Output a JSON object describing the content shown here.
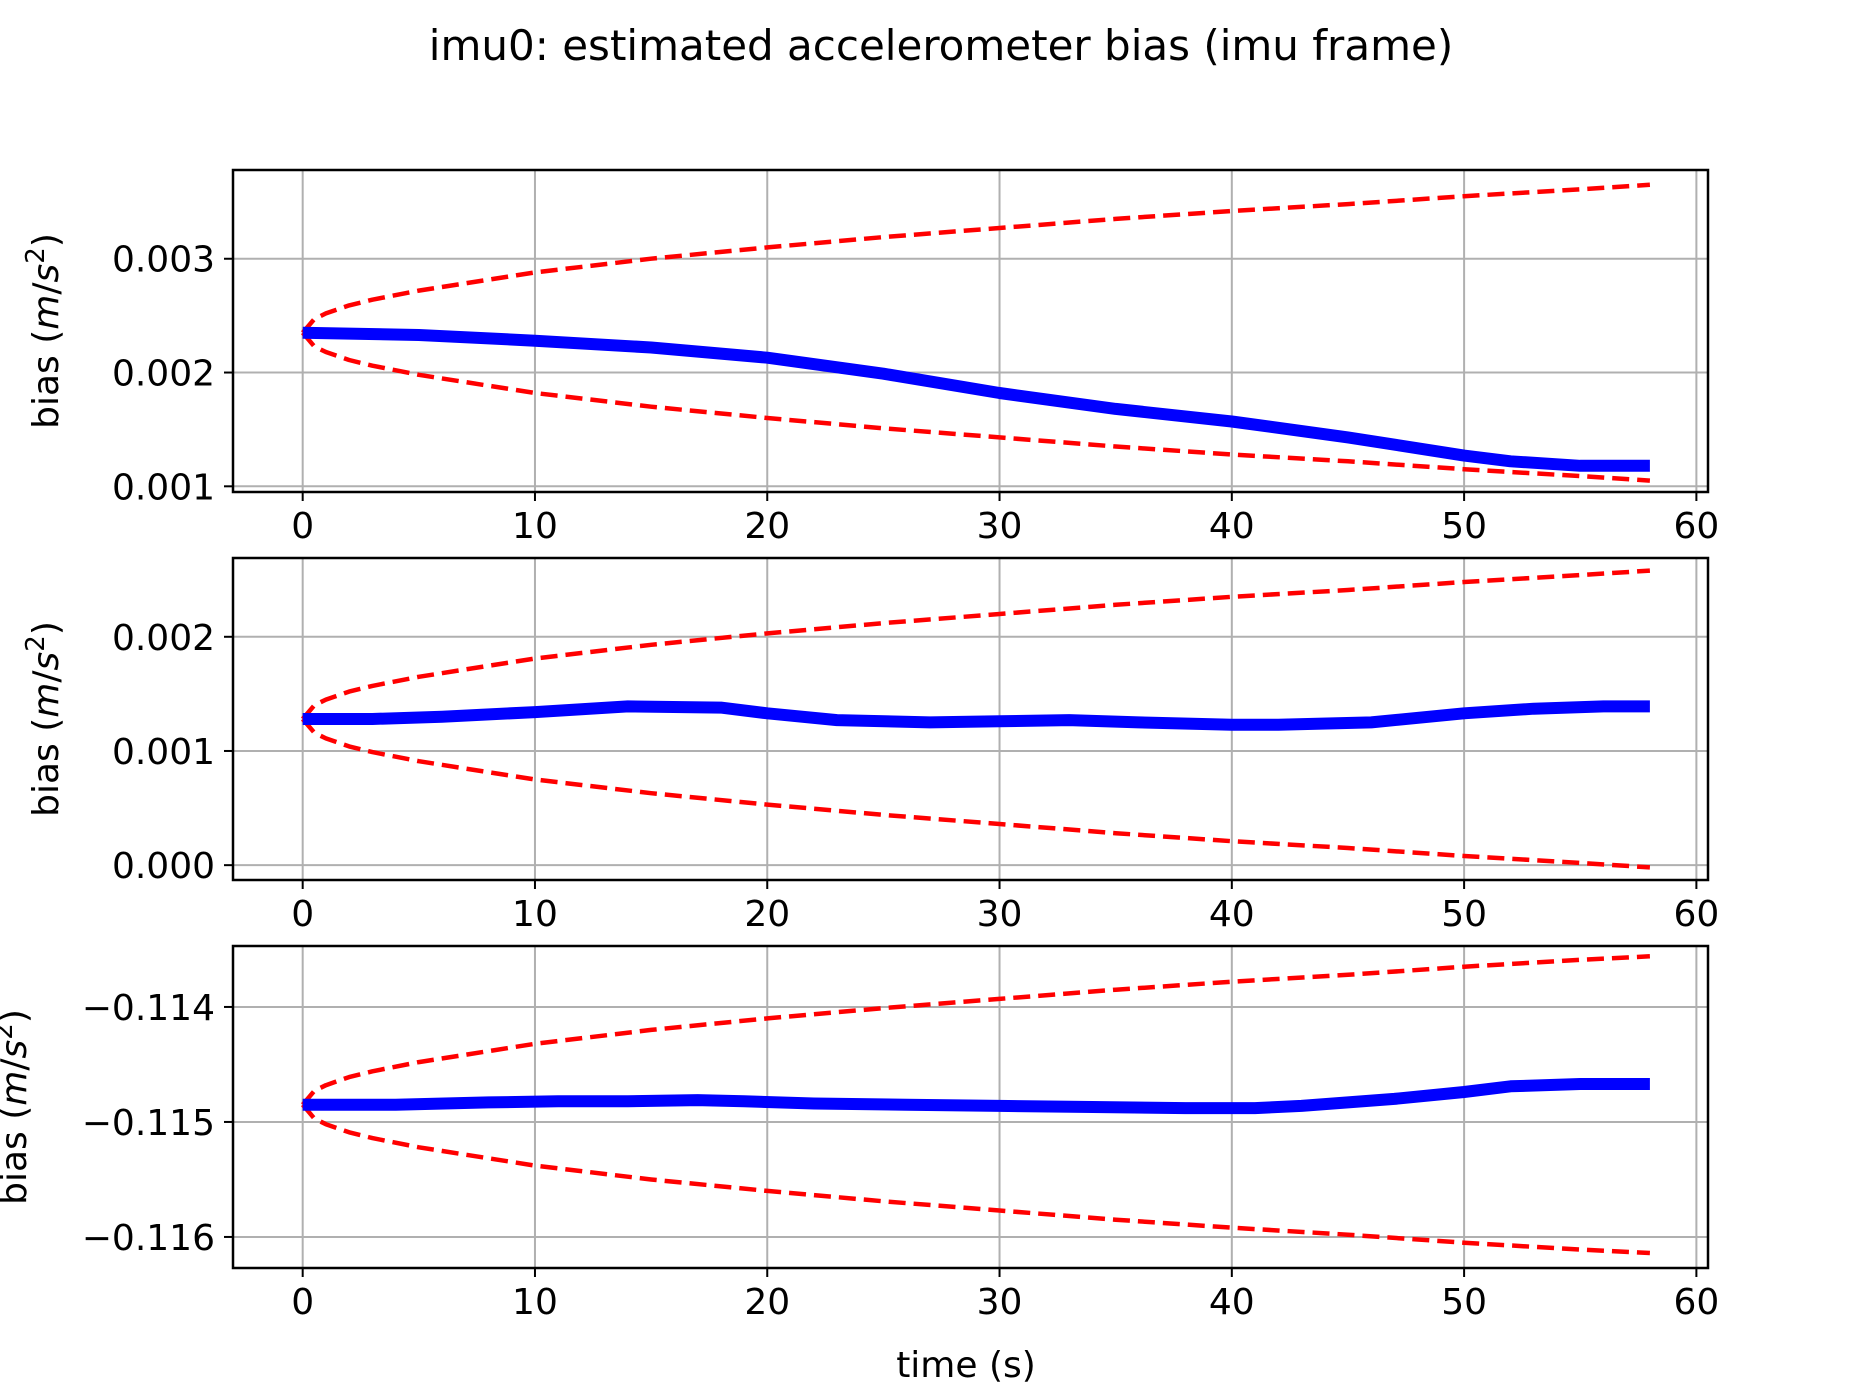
{
  "chart_data": [
    {
      "type": "line",
      "title": "imu0: estimated accelerometer bias (imu frame)",
      "xlabel": "",
      "ylabel": "bias (m/s²)",
      "ylabel_parts": {
        "pre": "bias (",
        "var_m": "m",
        "slash": "/",
        "var_s": "s",
        "sup": "2",
        "post": ")"
      },
      "xlim": [
        -3,
        60.5
      ],
      "ylim": [
        0.00095,
        0.00378
      ],
      "xticks": [
        0,
        10,
        20,
        30,
        40,
        50,
        60
      ],
      "xtick_labels": [
        "0",
        "10",
        "20",
        "30",
        "40",
        "50",
        "60"
      ],
      "yticks": [
        0.001,
        0.002,
        0.003
      ],
      "ytick_labels": [
        "0.001",
        "0.002",
        "0.003"
      ],
      "grid": true,
      "series": [
        {
          "role": "estimate",
          "color": "#0000ff",
          "style": "solid",
          "x": [
            0,
            5,
            10,
            15,
            20,
            25,
            30,
            35,
            40,
            45,
            50,
            52,
            55,
            58
          ],
          "y": [
            0.00235,
            0.00233,
            0.00228,
            0.00222,
            0.00213,
            0.00199,
            0.00182,
            0.00168,
            0.00157,
            0.00143,
            0.00127,
            0.00122,
            0.00118,
            0.00118
          ]
        },
        {
          "role": "upper bound",
          "color": "#ff0000",
          "style": "dashed",
          "x": [
            0,
            0.5,
            1,
            2,
            3,
            5,
            10,
            15,
            20,
            25,
            30,
            35,
            40,
            45,
            50,
            55,
            58
          ],
          "y": [
            0.00235,
            0.00247,
            0.00252,
            0.00259,
            0.00264,
            0.00272,
            0.00288,
            0.003,
            0.0031,
            0.00319,
            0.00327,
            0.00335,
            0.00342,
            0.00348,
            0.00355,
            0.00361,
            0.00365
          ]
        },
        {
          "role": "lower bound",
          "color": "#ff0000",
          "style": "dashed",
          "x": [
            0,
            0.5,
            1,
            2,
            3,
            5,
            10,
            15,
            20,
            25,
            30,
            35,
            40,
            45,
            50,
            55,
            58
          ],
          "y": [
            0.00235,
            0.00223,
            0.00218,
            0.00211,
            0.00206,
            0.00198,
            0.00182,
            0.0017,
            0.0016,
            0.00151,
            0.00143,
            0.00135,
            0.00128,
            0.00122,
            0.00115,
            0.00109,
            0.00105
          ]
        }
      ]
    },
    {
      "type": "line",
      "xlabel": "",
      "ylabel": "bias (m/s²)",
      "ylabel_parts": {
        "pre": "bias (",
        "var_m": "m",
        "slash": "/",
        "var_s": "s",
        "sup": "2",
        "post": ")"
      },
      "xlim": [
        -3,
        60.5
      ],
      "ylim": [
        -0.00013,
        0.00269
      ],
      "xticks": [
        0,
        10,
        20,
        30,
        40,
        50,
        60
      ],
      "xtick_labels": [
        "0",
        "10",
        "20",
        "30",
        "40",
        "50",
        "60"
      ],
      "yticks": [
        0.0,
        0.001,
        0.002
      ],
      "ytick_labels": [
        "0.000",
        "0.001",
        "0.002"
      ],
      "grid": true,
      "series": [
        {
          "role": "estimate",
          "color": "#0000ff",
          "style": "solid",
          "x": [
            0,
            3,
            6,
            10,
            14,
            18,
            20,
            23,
            27,
            30,
            33,
            36,
            40,
            42,
            46,
            50,
            53,
            56,
            58
          ],
          "y": [
            0.00128,
            0.00128,
            0.0013,
            0.00134,
            0.00139,
            0.00138,
            0.00133,
            0.00127,
            0.00125,
            0.00126,
            0.00127,
            0.00125,
            0.00123,
            0.00123,
            0.00125,
            0.00133,
            0.00137,
            0.00139,
            0.00139
          ]
        },
        {
          "role": "upper bound",
          "color": "#ff0000",
          "style": "dashed",
          "x": [
            0,
            0.5,
            1,
            2,
            3,
            5,
            10,
            15,
            20,
            25,
            30,
            35,
            40,
            45,
            50,
            55,
            58
          ],
          "y": [
            0.00128,
            0.0014,
            0.00145,
            0.00152,
            0.00157,
            0.00165,
            0.00181,
            0.00193,
            0.00203,
            0.00212,
            0.0022,
            0.00228,
            0.00235,
            0.00241,
            0.00248,
            0.00254,
            0.00258
          ]
        },
        {
          "role": "lower bound",
          "color": "#ff0000",
          "style": "dashed",
          "x": [
            0,
            0.5,
            1,
            2,
            3,
            5,
            10,
            15,
            20,
            25,
            30,
            35,
            40,
            45,
            50,
            55,
            58
          ],
          "y": [
            0.00128,
            0.00116,
            0.00111,
            0.00104,
            0.00099,
            0.00091,
            0.00075,
            0.00063,
            0.00053,
            0.00044,
            0.00036,
            0.00028,
            0.00021,
            0.00015,
            8e-05,
            2e-05,
            -2e-05
          ]
        }
      ]
    },
    {
      "type": "line",
      "xlabel": "time (s)",
      "ylabel": "bias (m/s²)",
      "ylabel_parts": {
        "pre": "bias (",
        "var_m": "m",
        "slash": "/",
        "var_s": "s",
        "sup": "2",
        "post": ")"
      },
      "xlim": [
        -3,
        60.5
      ],
      "ylim": [
        -0.11627,
        -0.11347
      ],
      "xticks": [
        0,
        10,
        20,
        30,
        40,
        50,
        60
      ],
      "xtick_labels": [
        "0",
        "10",
        "20",
        "30",
        "40",
        "50",
        "60"
      ],
      "yticks": [
        -0.114,
        -0.115,
        -0.116
      ],
      "ytick_labels": [
        "−0.114",
        "−0.115",
        "−0.116"
      ],
      "grid": true,
      "series": [
        {
          "role": "estimate",
          "color": "#0000ff",
          "style": "solid",
          "x": [
            0,
            4,
            8,
            11,
            14,
            17,
            19,
            22,
            26,
            30,
            34,
            38,
            41,
            43,
            47,
            50,
            52,
            55,
            58
          ],
          "y": [
            -0.11485,
            -0.11485,
            -0.11483,
            -0.11482,
            -0.11482,
            -0.11481,
            -0.11482,
            -0.11484,
            -0.11485,
            -0.11486,
            -0.11487,
            -0.11488,
            -0.11488,
            -0.11486,
            -0.1148,
            -0.11474,
            -0.11469,
            -0.11467,
            -0.11467
          ]
        },
        {
          "role": "upper bound",
          "color": "#ff0000",
          "style": "dashed",
          "x": [
            0,
            0.5,
            1,
            2,
            3,
            5,
            10,
            15,
            20,
            25,
            30,
            35,
            40,
            45,
            50,
            55,
            58
          ],
          "y": [
            -0.11485,
            -0.11473,
            -0.11468,
            -0.11461,
            -0.11456,
            -0.11448,
            -0.11432,
            -0.1142,
            -0.1141,
            -0.11401,
            -0.11393,
            -0.11385,
            -0.11378,
            -0.11372,
            -0.11365,
            -0.11359,
            -0.11356
          ]
        },
        {
          "role": "lower bound",
          "color": "#ff0000",
          "style": "dashed",
          "x": [
            0,
            0.5,
            1,
            2,
            3,
            5,
            10,
            15,
            20,
            25,
            30,
            35,
            40,
            45,
            50,
            55,
            58
          ],
          "y": [
            -0.11485,
            -0.11497,
            -0.11502,
            -0.11509,
            -0.11514,
            -0.11522,
            -0.11538,
            -0.1155,
            -0.1156,
            -0.11569,
            -0.11577,
            -0.11585,
            -0.11592,
            -0.11598,
            -0.11605,
            -0.11611,
            -0.11614
          ]
        }
      ]
    }
  ]
}
